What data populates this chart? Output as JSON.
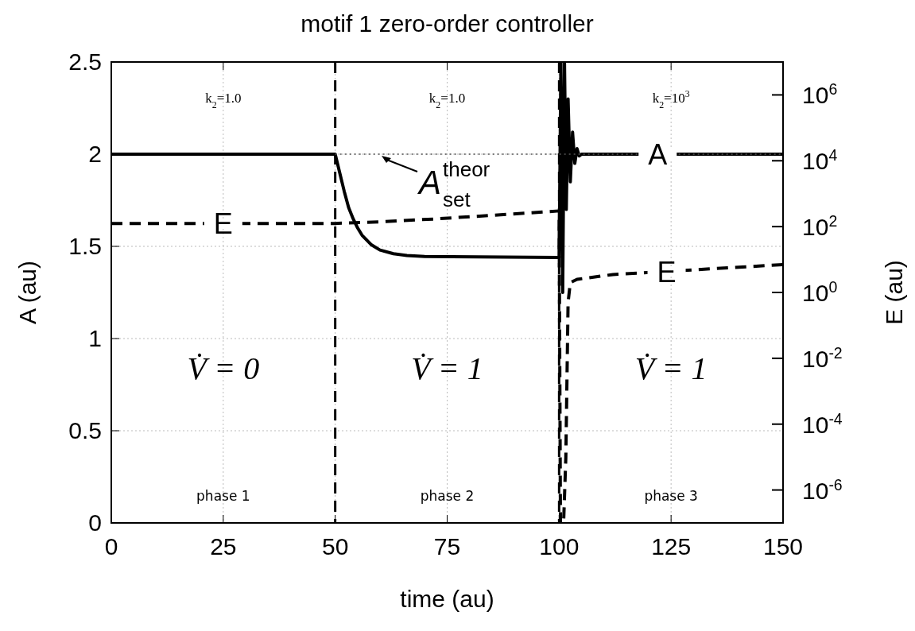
{
  "chart_data": {
    "type": "line",
    "title": "motif 1 zero-order controller",
    "xlabel": "time (au)",
    "ylabel": "A (au)",
    "y2label": "E (au)",
    "xlim": [
      0,
      150
    ],
    "xticks": [
      0,
      25,
      50,
      75,
      100,
      125,
      150
    ],
    "ylim": [
      0,
      2.5
    ],
    "yticks": [
      0,
      0.5,
      1,
      1.5,
      2,
      2.5
    ],
    "y2lim": [
      1e-07,
      10000000.0
    ],
    "log": "y2",
    "y2ticks": [
      {
        "value": 1e-06,
        "label": "10$^{-6}$"
      },
      {
        "value": 0.0001,
        "label": "10$^{-4}$"
      },
      {
        "value": 0.01,
        "label": "10$^{-2}$"
      },
      {
        "value": 1,
        "label": "10$^{0}$"
      },
      {
        "value": 100,
        "label": "10$^{2}$"
      },
      {
        "value": 10000,
        "label": "10$^{4}$"
      },
      {
        "value": 1000000,
        "label": "10$^{6}$"
      }
    ],
    "grid": true,
    "series": [
      {
        "name": "A",
        "color": "#000000",
        "line_style": "solid",
        "x": [
          0,
          50,
          51,
          52,
          53,
          54,
          55,
          56,
          58,
          60,
          63,
          66,
          70,
          100,
          100.4,
          100.8,
          101.2,
          101.6,
          102,
          102.5,
          103,
          103.5,
          104,
          104.5,
          105,
          150
        ],
        "values": [
          2,
          2,
          1.9,
          1.8,
          1.71,
          1.65,
          1.6,
          1.56,
          1.51,
          1.48,
          1.46,
          1.45,
          1.445,
          1.44,
          2.5,
          1.25,
          2.5,
          1.7,
          2.3,
          1.85,
          2.12,
          1.95,
          2.03,
          1.99,
          2,
          2
        ]
      },
      {
        "name": "E",
        "color": "#000000",
        "line_style": "dashed",
        "axis": "y2",
        "x": [
          0,
          50,
          60,
          72,
          85,
          100,
          100.3,
          101,
          101.5,
          102,
          102.5,
          104,
          112,
          150
        ],
        "values": [
          125,
          125,
          140,
          170,
          220,
          300,
          1e-07,
          1e-07,
          1e-05,
          0.5,
          2,
          2.5,
          3.5,
          7
        ]
      },
      {
        "color": "#555555",
        "line_style": "dotted",
        "x": [
          50,
          150
        ],
        "values": [
          2,
          2
        ]
      }
    ],
    "ref_lines": [
      {
        "axis": "x",
        "value": 50,
        "line_style": "dashed"
      },
      {
        "axis": "x",
        "value": 100,
        "line_style": "dashed"
      }
    ],
    "annotations": [
      {
        "text": "A$^{theor}$$_{set}$",
        "x": 60,
        "y": 2
      },
      "k$_{2}$=1.0",
      "k$_{2}$=1.0",
      "k$_{2}$=10$^{3}$",
      "V̇ = 0",
      "V̇ = 1",
      "V̇ = 1",
      "phase 1",
      "phase 2",
      "phase 3"
    ]
  }
}
